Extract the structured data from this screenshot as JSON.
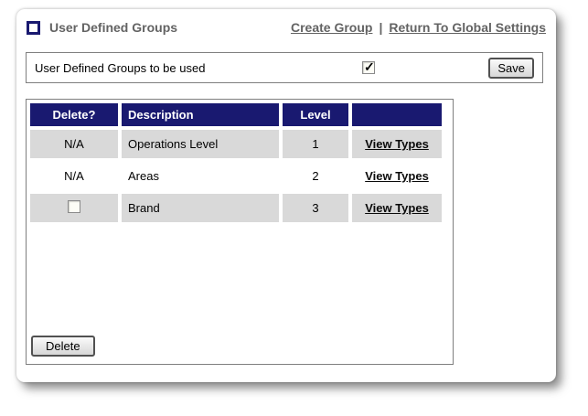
{
  "card": {
    "header": {
      "title": "User Defined Groups",
      "link_create": "Create Group",
      "separator": "|",
      "link_return": "Return To Global Settings"
    },
    "settings_bar": {
      "label": "User Defined Groups to be used",
      "checkbox_checked": true,
      "save_button": "Save"
    },
    "groups_table": {
      "columns": {
        "delete": "Delete?",
        "description": "Description",
        "level": "Level",
        "actions": ""
      },
      "rows": [
        {
          "delete": "N/A",
          "description": "Operations Level",
          "level": "1",
          "action": "View Types"
        },
        {
          "delete": "N/A",
          "description": "Areas",
          "level": "2",
          "action": "View Types"
        },
        {
          "delete": "",
          "checkbox_checked": false,
          "description": "Brand",
          "level": "3",
          "action": "View Types"
        }
      ],
      "delete_button": "Delete"
    },
    "colors": {
      "header_bg": "#191970",
      "alt_row_bg": "#d9d9d9",
      "muted_text": "#636363"
    }
  }
}
